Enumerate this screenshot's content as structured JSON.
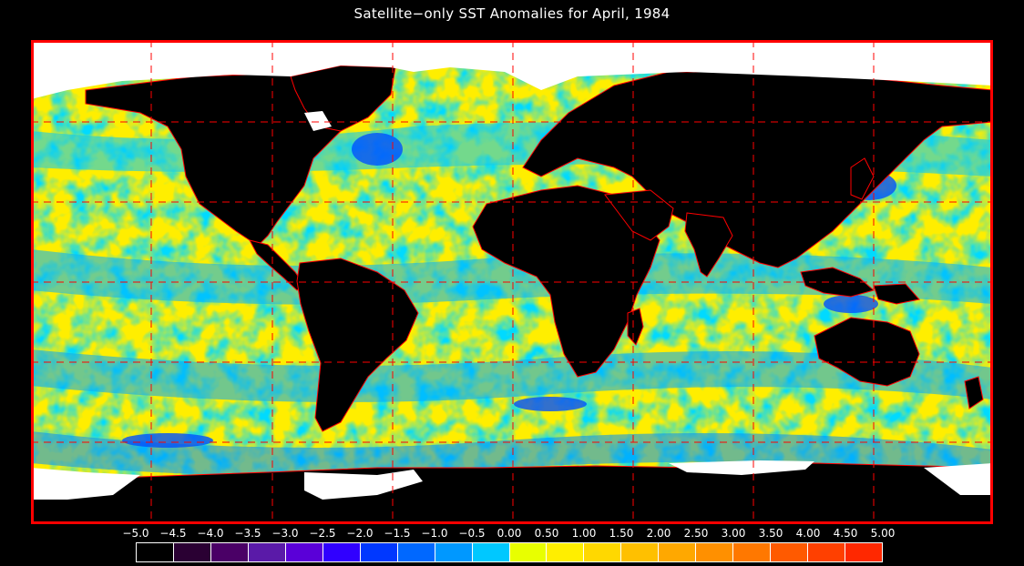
{
  "title": "Satellite−only SST Anomalies for April, 1984",
  "colors": {
    "frame": "#ff0000",
    "grid": "#ff0000",
    "coast": "#ff0000",
    "land": "#000000",
    "ice": "#ffffff",
    "ocean_base": "#ffee00"
  },
  "legend": {
    "tick_labels": [
      "−5.0",
      "−4.5",
      "−4.0",
      "−3.5",
      "−3.0",
      "−2.5",
      "−2.0",
      "−1.5",
      "−1.0",
      "−0.5",
      "0.00",
      "0.50",
      "1.00",
      "1.50",
      "2.00",
      "2.50",
      "3.00",
      "3.50",
      "4.00",
      "4.50",
      "5.00"
    ],
    "colors": [
      "#000000",
      "#2a0033",
      "#4a0066",
      "#5a1aa8",
      "#5a00d8",
      "#3000ff",
      "#0038ff",
      "#0068ff",
      "#0098ff",
      "#00c8ff",
      "#e8ff00",
      "#ffee00",
      "#ffd800",
      "#ffc000",
      "#ffa800",
      "#ff9000",
      "#ff7800",
      "#ff5a00",
      "#ff4000",
      "#ff2800"
    ]
  }
}
